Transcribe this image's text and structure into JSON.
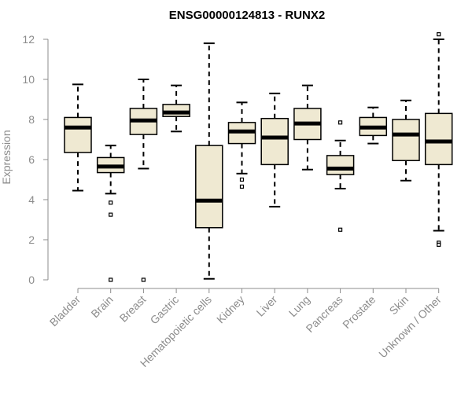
{
  "chart_data": {
    "type": "boxplot",
    "title": "ENSG00000124813 - RUNX2",
    "ylabel": "Expression",
    "xlabel": "",
    "ylim": [
      0,
      12
    ],
    "yticks": [
      "0",
      "2",
      "4",
      "6",
      "8",
      "10",
      "12"
    ],
    "categories": [
      "Bladder",
      "Brain",
      "Breast",
      "Gastric",
      "Hematopoietic cells",
      "Kidney",
      "Liver",
      "Lung",
      "Pancreas",
      "Prostate",
      "Skin",
      "Unknown / Other"
    ],
    "boxes": [
      {
        "category": "Bladder",
        "whisker_low": 4.45,
        "q1": 6.35,
        "median": 7.6,
        "q3": 8.1,
        "whisker_high": 9.75,
        "outliers": []
      },
      {
        "category": "Brain",
        "whisker_low": 4.3,
        "q1": 5.35,
        "median": 5.65,
        "q3": 6.1,
        "whisker_high": 6.7,
        "outliers": [
          3.85,
          3.25,
          0.0
        ]
      },
      {
        "category": "Breast",
        "whisker_low": 5.55,
        "q1": 7.25,
        "median": 7.95,
        "q3": 8.55,
        "whisker_high": 10.0,
        "outliers": [
          0.0
        ]
      },
      {
        "category": "Gastric",
        "whisker_low": 7.4,
        "q1": 8.15,
        "median": 8.35,
        "q3": 8.75,
        "whisker_high": 9.7,
        "outliers": []
      },
      {
        "category": "Hematopoietic cells",
        "whisker_low": 0.05,
        "q1": 2.6,
        "median": 3.95,
        "q3": 6.7,
        "whisker_high": 11.8,
        "outliers": []
      },
      {
        "category": "Kidney",
        "whisker_low": 5.3,
        "q1": 6.8,
        "median": 7.4,
        "q3": 7.85,
        "whisker_high": 8.85,
        "outliers": [
          5.0,
          4.65
        ]
      },
      {
        "category": "Liver",
        "whisker_low": 3.65,
        "q1": 5.75,
        "median": 7.1,
        "q3": 8.05,
        "whisker_high": 9.3,
        "outliers": []
      },
      {
        "category": "Lung",
        "whisker_low": 5.5,
        "q1": 7.0,
        "median": 7.8,
        "q3": 8.55,
        "whisker_high": 9.7,
        "outliers": []
      },
      {
        "category": "Pancreas",
        "whisker_low": 4.55,
        "q1": 5.25,
        "median": 5.55,
        "q3": 6.2,
        "whisker_high": 6.95,
        "outliers": [
          7.85,
          2.5
        ]
      },
      {
        "category": "Prostate",
        "whisker_low": 6.8,
        "q1": 7.2,
        "median": 7.6,
        "q3": 8.1,
        "whisker_high": 8.6,
        "outliers": []
      },
      {
        "category": "Skin",
        "whisker_low": 4.95,
        "q1": 5.95,
        "median": 7.25,
        "q3": 8.0,
        "whisker_high": 8.95,
        "outliers": []
      },
      {
        "category": "Unknown / Other",
        "whisker_low": 2.45,
        "q1": 5.75,
        "median": 6.9,
        "q3": 8.3,
        "whisker_high": 12.0,
        "outliers": [
          12.25,
          1.85,
          1.75
        ]
      }
    ],
    "box_fill": "#efe9d2",
    "grid": false,
    "legend": "none"
  }
}
